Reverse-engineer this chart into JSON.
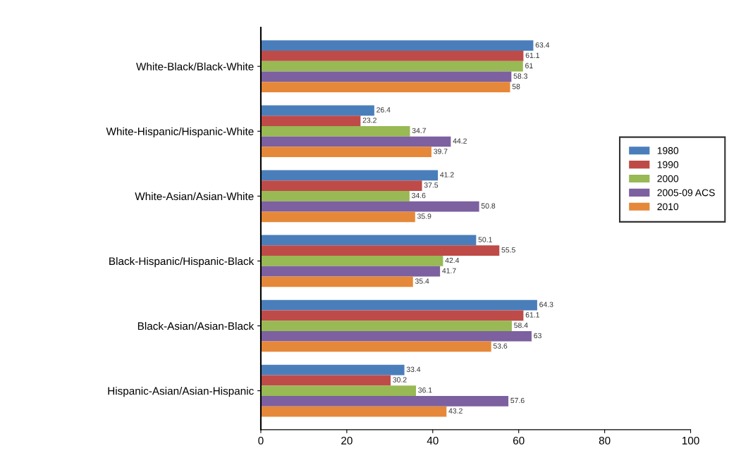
{
  "chart_data": {
    "type": "bar",
    "orientation": "horizontal",
    "categories": [
      "White-Black/Black-White",
      "White-Hispanic/Hispanic-White",
      "White-Asian/Asian-White",
      "Black-Hispanic/Hispanic-Black",
      "Black-Asian/Asian-Black",
      "Hispanic-Asian/Asian-Hispanic"
    ],
    "series": [
      {
        "name": "1980",
        "color": "#4a7ebb",
        "values": [
          63.4,
          26.4,
          41.2,
          50.1,
          64.3,
          33.4
        ]
      },
      {
        "name": "1990",
        "color": "#be4b48",
        "values": [
          61.1,
          23.2,
          37.5,
          55.5,
          61.1,
          30.2
        ]
      },
      {
        "name": "2000",
        "color": "#98b954",
        "values": [
          61,
          34.7,
          34.6,
          42.4,
          58.4,
          36.1
        ]
      },
      {
        "name": "2005-09 ACS",
        "color": "#7d60a0",
        "values": [
          58.3,
          44.2,
          50.8,
          41.7,
          63,
          57.6
        ]
      },
      {
        "name": "2010",
        "color": "#e5883a",
        "values": [
          58,
          39.7,
          35.9,
          35.4,
          53.6,
          43.2
        ]
      }
    ],
    "xlim": [
      0,
      100
    ],
    "xticks": [
      0,
      20,
      40,
      60,
      80,
      100
    ],
    "data_labels": true,
    "legend": "right",
    "grid": false
  }
}
